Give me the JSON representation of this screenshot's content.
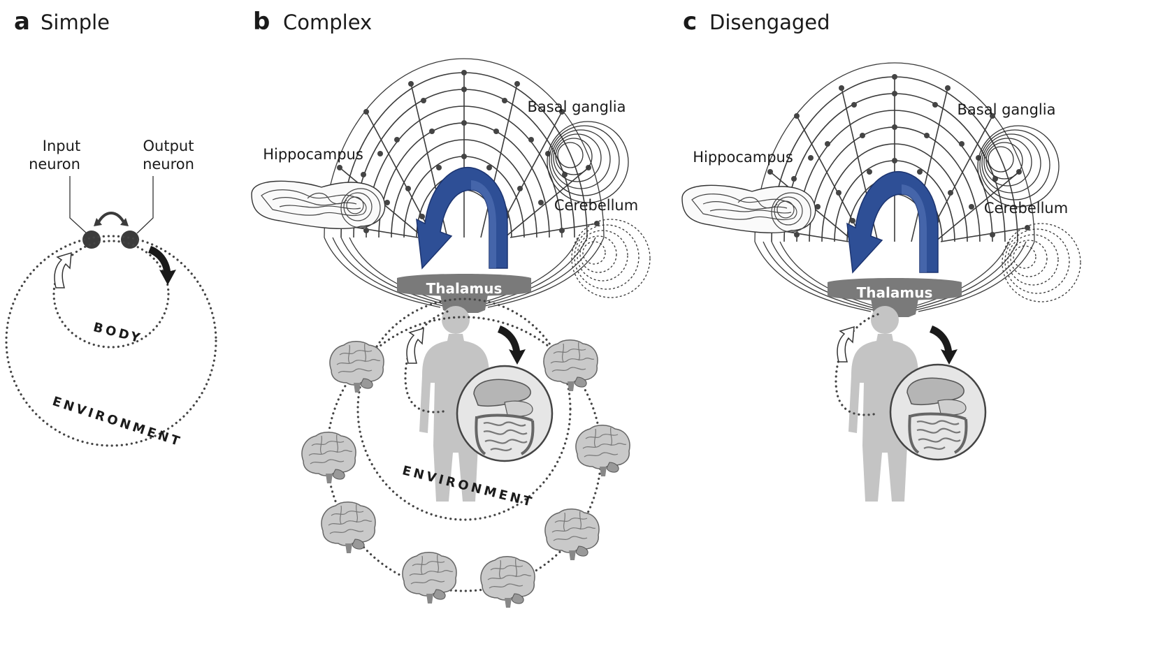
{
  "panels": [
    {
      "letter": "a",
      "title": "Simple"
    },
    {
      "letter": "b",
      "title": "Complex"
    },
    {
      "letter": "c",
      "title": "Disengaged"
    }
  ],
  "panel_a": {
    "input_label_1": "Input",
    "input_label_2": "neuron",
    "output_label_1": "Output",
    "output_label_2": "neuron",
    "inner_ring": "BODY",
    "outer_ring": "ENVIRONMENT"
  },
  "panel_b": {
    "hippocampus": "Hippocampus",
    "basal_ganglia": "Basal ganglia",
    "cerebellum": "Cerebellum",
    "thalamus": "Thalamus",
    "environment_ring": "ENVIRONMENT"
  },
  "panel_c": {
    "hippocampus": "Hippocampus",
    "basal_ganglia": "Basal ganglia",
    "cerebellum": "Cerebellum",
    "thalamus": "Thalamus"
  },
  "colors": {
    "arrow_blue": "#2e4f96",
    "neuron_dark": "#3b3b3b",
    "thalamus_gray": "#7a7a7a",
    "body_gray": "#c4c4c4"
  }
}
